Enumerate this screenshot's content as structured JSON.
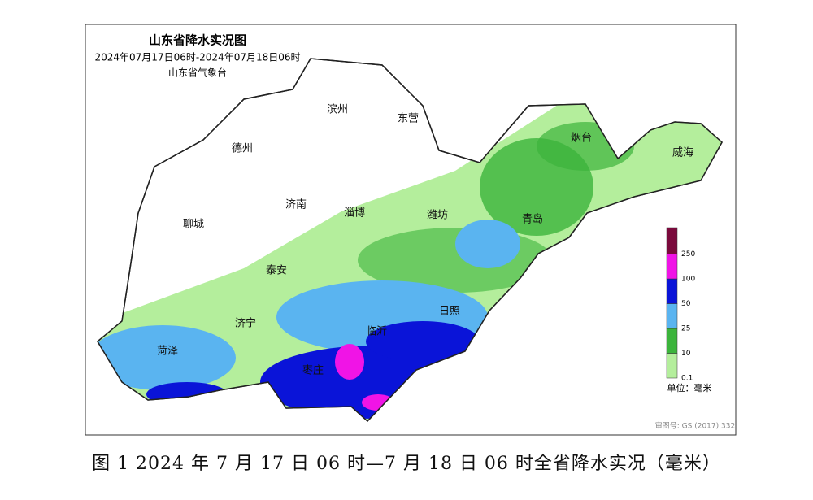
{
  "map": {
    "title": "山东省降水实况图",
    "period": "2024年07月17日06时-2024年07月18日06时",
    "agency": "山东省气象台",
    "cities": [
      "滨州",
      "东营",
      "德州",
      "烟台",
      "威海",
      "济南",
      "淄博",
      "潍坊",
      "聊城",
      "青岛",
      "泰安",
      "日照",
      "济宁",
      "临沂",
      "菏泽",
      "枣庄"
    ],
    "legend": {
      "levels": [
        0.1,
        10,
        25,
        50,
        100,
        250
      ],
      "colors": [
        "#b4ee9c",
        "#3cb43c",
        "#5ab4f0",
        "#0a14d8",
        "#f014e6",
        "#7a0a3c"
      ],
      "unit": "单位：毫米"
    },
    "review_number": "审图号: GS (2017) 332",
    "caption": "图 1 2024 年 7 月 17 日 06 时—7 月 18 日 06 时全省降水实况（毫米）"
  }
}
